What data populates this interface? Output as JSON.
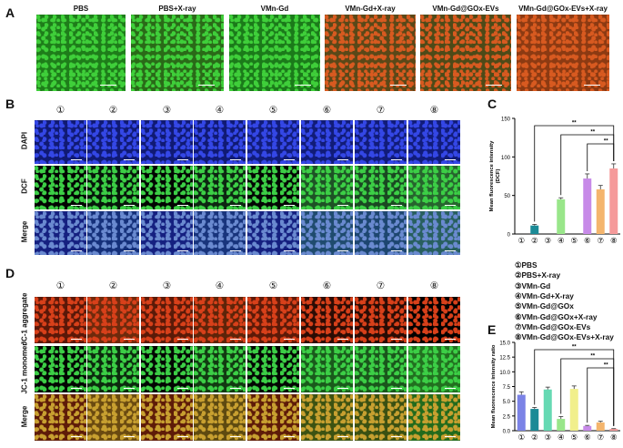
{
  "panels": {
    "A": "A",
    "B": "B",
    "C": "C",
    "D": "D",
    "E": "E"
  },
  "panelA": {
    "titles": [
      "PBS",
      "PBS+X-ray",
      "VMn-Gd",
      "VMn-Gd+X-ray",
      "VMn-Gd@GOx-EVs",
      "VMn-Gd@GOx-EVs+X-ray"
    ],
    "colors": [
      "#1e7d1a",
      "#2a6a18",
      "#1b7a1a",
      "#5a4818",
      "#4d4a18",
      "#8c3a12"
    ]
  },
  "circles": [
    "①",
    "②",
    "③",
    "④",
    "⑤",
    "⑥",
    "⑦",
    "⑧"
  ],
  "panelB": {
    "rows": [
      "DAPI",
      "DCF",
      "Merge"
    ],
    "row_colors": [
      [
        "#101a74",
        "#101a74",
        "#101a74",
        "#101a74",
        "#111c7a",
        "#111c78",
        "#111c7a",
        "#111c7a"
      ],
      [
        "#020402",
        "#06160a",
        "#020402",
        "#0d2612",
        "#030503",
        "#1e5226",
        "#1a4822",
        "#27642e"
      ],
      [
        "#152080",
        "#15307a",
        "#152080",
        "#18347c",
        "#152080",
        "#1f4b6e",
        "#1d4670",
        "#285f5e"
      ]
    ]
  },
  "panelD": {
    "rows": [
      "JC-1 aggregate",
      "JC-1 monomer",
      "Merge"
    ],
    "row_colors": [
      [
        "#5a1808",
        "#6e2a0c",
        "#5a1a08",
        "#5e2409",
        "#5c1a08",
        "#2c0c04",
        "#2a0c04",
        "#020100"
      ],
      [
        "#030603",
        "#0c2a0e",
        "#030603",
        "#123a12",
        "#030603",
        "#1a5a1c",
        "#1a561c",
        "#227020"
      ],
      [
        "#5e1b08",
        "#6a4a10",
        "#5e1b08",
        "#5e4a10",
        "#5e1b08",
        "#3c5212",
        "#3a5012",
        "#226a1c"
      ]
    ]
  },
  "legend": [
    "①PBS",
    "②PBS+X-ray",
    "③VMn-Gd",
    "④VMn-Gd+X-ray",
    "⑤VMn-Gd@GOx",
    "⑥VMn-Gd@GOx+X-ray",
    "⑦VMn-Gd@GOx-EVs",
    "⑧VMn-Gd@GOx-EVs+X-ray"
  ],
  "chart_data": [
    {
      "panel": "C",
      "type": "bar",
      "categories": [
        "①",
        "②",
        "③",
        "④",
        "⑤",
        "⑥",
        "⑦",
        "⑧"
      ],
      "values": [
        0,
        11,
        0,
        45,
        0,
        72,
        58,
        85
      ],
      "errors": [
        0,
        1.5,
        0,
        2,
        0,
        6,
        5,
        6
      ],
      "bar_colors": [
        "#7b83e6",
        "#1b8a96",
        "#66d9b3",
        "#99e68a",
        "#f1ef8c",
        "#c78ae8",
        "#f4b56d",
        "#f59a9a"
      ],
      "ylabel": "Mean fluorescence intensity\n(DCF)",
      "ylim": [
        0,
        150
      ],
      "yticks": [
        0,
        50,
        100,
        150
      ],
      "significance": [
        {
          "from": 2,
          "to": 8,
          "label": "**"
        },
        {
          "from": 4,
          "to": 8,
          "label": "**"
        },
        {
          "from": 6,
          "to": 8,
          "label": "**"
        }
      ]
    },
    {
      "panel": "E",
      "type": "bar",
      "categories": [
        "①",
        "②",
        "③",
        "④",
        "⑤",
        "⑥",
        "⑦",
        "⑧"
      ],
      "values": [
        6.1,
        3.7,
        7.0,
        2.0,
        7.1,
        0.8,
        1.4,
        0.3
      ],
      "errors": [
        0.5,
        0.25,
        0.4,
        0.4,
        0.5,
        0.1,
        0.2,
        0.05
      ],
      "bar_colors": [
        "#7b83e6",
        "#1b8a96",
        "#66d9b3",
        "#99e68a",
        "#f1ef8c",
        "#c78ae8",
        "#f4b56d",
        "#f59a9a"
      ],
      "ylabel": "Mean fluorescence intensity ratio",
      "ylim": [
        0,
        15
      ],
      "yticks": [
        0.0,
        2.5,
        5.0,
        7.5,
        10.0,
        12.5,
        15.0
      ],
      "significance": [
        {
          "from": 2,
          "to": 8,
          "label": "**"
        },
        {
          "from": 4,
          "to": 8,
          "label": "**"
        },
        {
          "from": 6,
          "to": 8,
          "label": "**"
        }
      ]
    }
  ]
}
